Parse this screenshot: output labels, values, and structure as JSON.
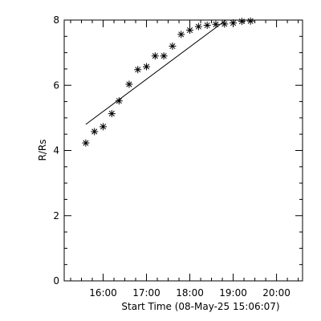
{
  "chart_data": {
    "type": "scatter",
    "xlabel": "Start Time (08-May-25 15:06:07)",
    "ylabel": "R/Rs",
    "x_ticks": [
      {
        "label": "16:00",
        "hours": 16.0
      },
      {
        "label": "17:00",
        "hours": 17.0
      },
      {
        "label": "18:00",
        "hours": 18.0
      },
      {
        "label": "19:00",
        "hours": 19.0
      },
      {
        "label": "20:00",
        "hours": 20.0
      }
    ],
    "y_ticks": [
      0,
      2,
      4,
      6,
      8
    ],
    "xlim_hours": [
      15.1019,
      20.6
    ],
    "ylim": [
      0,
      8
    ],
    "grid": false,
    "marker": "asterisk",
    "series": [
      {
        "x_hours": [
          15.6,
          15.8,
          16.0,
          16.2,
          16.367,
          16.6,
          16.8,
          17.0,
          17.2,
          17.4,
          17.6,
          17.8,
          18.0,
          18.2,
          18.4,
          18.6,
          18.8,
          19.0,
          19.2,
          19.4
        ],
        "values": [
          4.23,
          4.58,
          4.73,
          5.13,
          5.52,
          6.03,
          6.48,
          6.57,
          6.9,
          6.9,
          7.2,
          7.56,
          7.69,
          7.8,
          7.84,
          7.87,
          7.88,
          7.91,
          7.96,
          7.97
        ]
      }
    ],
    "fit_line": {
      "x_hours": [
        15.6,
        18.833
      ],
      "values": [
        4.8,
        8.0
      ]
    }
  },
  "colors": {
    "ink": "#000000",
    "background": "#ffffff"
  }
}
